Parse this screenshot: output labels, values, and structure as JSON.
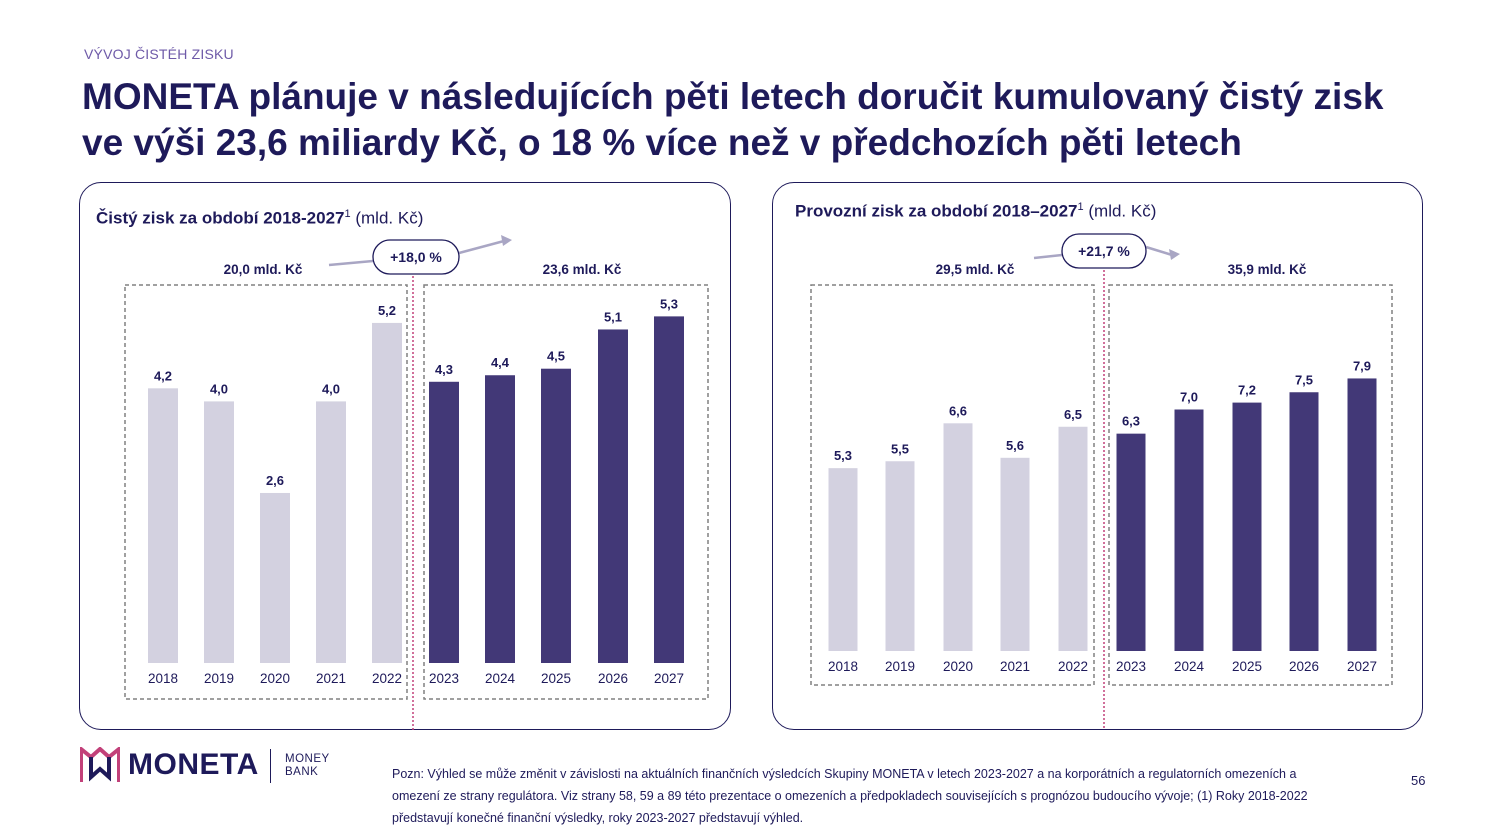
{
  "header": {
    "section_label": "VÝVOJ ČISTÉH ZISKU",
    "title": "MONETA plánuje v následujících pěti letech doručit kumulovaný čistý zisk ve výši 23,6 miliardy Kč, o 18 % více než v předchozích pěti letech"
  },
  "chart_data": [
    {
      "type": "bar",
      "title": "Čistý zisk za období 2018-2027",
      "title_sup": "1",
      "unit": "(mld. Kč)",
      "categories": [
        "2018",
        "2019",
        "2020",
        "2021",
        "2022",
        "2023",
        "2024",
        "2025",
        "2026",
        "2027"
      ],
      "values": [
        4.2,
        4.0,
        2.6,
        4.0,
        5.2,
        4.3,
        4.4,
        4.5,
        5.1,
        5.3
      ],
      "value_labels": [
        "4,2",
        "4,0",
        "2,6",
        "4,0",
        "5,2",
        "4,3",
        "4,4",
        "4,5",
        "5,1",
        "5,3"
      ],
      "groups": [
        {
          "label": "20,0 mld. Kč",
          "from": 0,
          "to": 4,
          "color": "#d3d1e0"
        },
        {
          "label": "23,6 mld. Kč",
          "from": 5,
          "to": 9,
          "color": "#423877"
        }
      ],
      "growth_label": "+18,0 %",
      "ylim": [
        0,
        6.5
      ]
    },
    {
      "type": "bar",
      "title": "Provozní zisk za období 2018–2027",
      "title_sup": "1",
      "unit": "(mld. Kč)",
      "categories": [
        "2018",
        "2019",
        "2020",
        "2021",
        "2022",
        "2023",
        "2024",
        "2025",
        "2026",
        "2027"
      ],
      "values": [
        5.3,
        5.5,
        6.6,
        5.6,
        6.5,
        6.3,
        7.0,
        7.2,
        7.5,
        7.9
      ],
      "value_labels": [
        "5,3",
        "5,5",
        "6,6",
        "5,6",
        "6,5",
        "6,3",
        "7,0",
        "7,2",
        "7,5",
        "7,9"
      ],
      "groups": [
        {
          "label": "29,5 mld. Kč",
          "from": 0,
          "to": 4,
          "color": "#d3d1e0"
        },
        {
          "label": "35,9 mld. Kč",
          "from": 5,
          "to": 9,
          "color": "#423877"
        }
      ],
      "growth_label": "+21,7 %",
      "ylim": [
        0,
        9.5
      ]
    }
  ],
  "logo": {
    "name": "MONETA",
    "sub_line1": "MONEY",
    "sub_line2": "BANK"
  },
  "footnote": "Pozn: Výhled se může změnit v závislosti na aktuálních finančních výsledcích Skupiny MONETA v letech 2023-2027 a na korporátních a regulatorních omezeních a omezení ze strany regulátora. Viz strany 58, 59 a 89 této prezentace o omezeních a předpokladech souvisejících s prognózou budoucího vývoje; (1) Roky 2018-2022 představují konečné finanční výsledky, roky 2023-2027 představují výhled.",
  "page_number": "56",
  "colors": {
    "navy": "#1e1a5a",
    "bar_past": "#d3d1e0",
    "bar_future": "#423877",
    "divider_pink": "#c2417a"
  }
}
